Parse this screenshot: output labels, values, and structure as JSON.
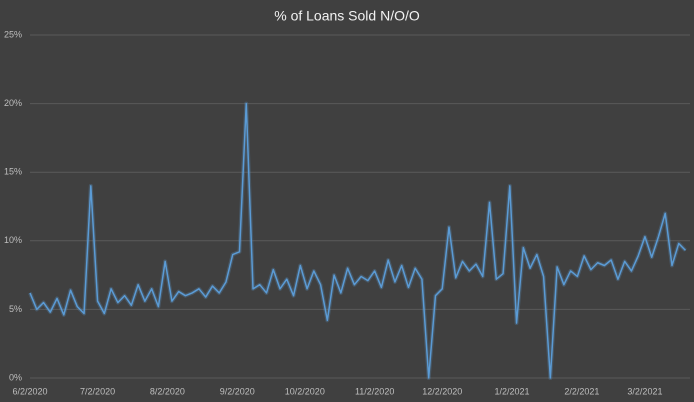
{
  "chart_data": {
    "type": "line",
    "title": "% of Loans Sold N/O/O",
    "x": [
      "6/2/2020",
      "6/5/2020",
      "6/8/2020",
      "6/11/2020",
      "6/14/2020",
      "6/17/2020",
      "6/20/2020",
      "6/23/2020",
      "6/26/2020",
      "6/29/2020",
      "7/2/2020",
      "7/5/2020",
      "7/8/2020",
      "7/11/2020",
      "7/14/2020",
      "7/17/2020",
      "7/20/2020",
      "7/23/2020",
      "7/26/2020",
      "7/29/2020",
      "8/1/2020",
      "8/4/2020",
      "8/7/2020",
      "8/10/2020",
      "8/13/2020",
      "8/16/2020",
      "8/19/2020",
      "8/22/2020",
      "8/25/2020",
      "8/28/2020",
      "8/31/2020",
      "9/3/2020",
      "9/6/2020",
      "9/9/2020",
      "9/12/2020",
      "9/15/2020",
      "9/18/2020",
      "9/21/2020",
      "9/24/2020",
      "9/27/2020",
      "9/30/2020",
      "10/3/2020",
      "10/6/2020",
      "10/9/2020",
      "10/12/2020",
      "10/15/2020",
      "10/18/2020",
      "10/21/2020",
      "10/24/2020",
      "10/27/2020",
      "10/30/2020",
      "11/2/2020",
      "11/5/2020",
      "11/8/2020",
      "11/11/2020",
      "11/14/2020",
      "11/17/2020",
      "11/20/2020",
      "11/23/2020",
      "11/26/2020",
      "11/29/2020",
      "12/2/2020",
      "12/5/2020",
      "12/8/2020",
      "12/11/2020",
      "12/14/2020",
      "12/17/2020",
      "12/20/2020",
      "12/23/2020",
      "12/26/2020",
      "12/29/2020",
      "1/1/2021",
      "1/4/2021",
      "1/7/2021",
      "1/10/2021",
      "1/13/2021",
      "1/16/2021",
      "1/19/2021",
      "1/22/2021",
      "1/25/2021",
      "1/28/2021",
      "1/31/2021",
      "2/3/2021",
      "2/6/2021",
      "2/9/2021",
      "2/12/2021",
      "2/15/2021",
      "2/18/2021",
      "2/21/2021",
      "2/24/2021",
      "2/27/2021",
      "3/2/2021",
      "3/5/2021",
      "3/8/2021",
      "3/11/2021",
      "3/14/2021",
      "3/17/2021",
      "3/20/2021"
    ],
    "series": [
      {
        "name": "% of Loans Sold N/O/O",
        "color": "#5b9bd5",
        "values": [
          6.2,
          5,
          5.5,
          4.8,
          5.8,
          4.6,
          6.4,
          5.2,
          4.7,
          14,
          5.6,
          4.7,
          6.5,
          5.5,
          6,
          5.3,
          6.8,
          5.6,
          6.5,
          5.2,
          8.5,
          5.6,
          6.3,
          6,
          6.2,
          6.5,
          5.9,
          6.7,
          6.2,
          7,
          9,
          9.2,
          20,
          6.5,
          6.8,
          6.2,
          7.9,
          6.5,
          7.2,
          6,
          8.2,
          6.5,
          7.8,
          6.8,
          4.2,
          7.5,
          6.2,
          8,
          6.8,
          7.4,
          7.1,
          7.8,
          6.6,
          8.6,
          7,
          8.2,
          6.6,
          8,
          7.2,
          0,
          6,
          6.5,
          11,
          7.3,
          8.5,
          7.8,
          8.3,
          7.4,
          12.8,
          7.2,
          7.6,
          14,
          4,
          9.5,
          8,
          9,
          7.4,
          0,
          8.1,
          6.8,
          7.8,
          7.4,
          8.9,
          7.9,
          8.4,
          8.2,
          8.6,
          7.2,
          8.5,
          7.8,
          8.9,
          10.3,
          8.8,
          10.3,
          12,
          8.2,
          9.8,
          9.3
        ]
      }
    ],
    "xlim": [
      "6/2/2020",
      "3/22/2021"
    ],
    "xticks": [
      "6/2/2020",
      "7/2/2020",
      "8/2/2020",
      "9/2/2020",
      "10/2/2020",
      "11/2/2020",
      "12/2/2020",
      "1/2/2021",
      "2/2/2021",
      "3/2/2021"
    ],
    "ylim": [
      0,
      25
    ],
    "yticks": [
      {
        "value": 0,
        "label": "0%"
      },
      {
        "value": 5,
        "label": "5%"
      },
      {
        "value": 10,
        "label": "10%"
      },
      {
        "value": 15,
        "label": "15%"
      },
      {
        "value": 20,
        "label": "20%"
      },
      {
        "value": 25,
        "label": "25%"
      }
    ],
    "grid": true
  }
}
